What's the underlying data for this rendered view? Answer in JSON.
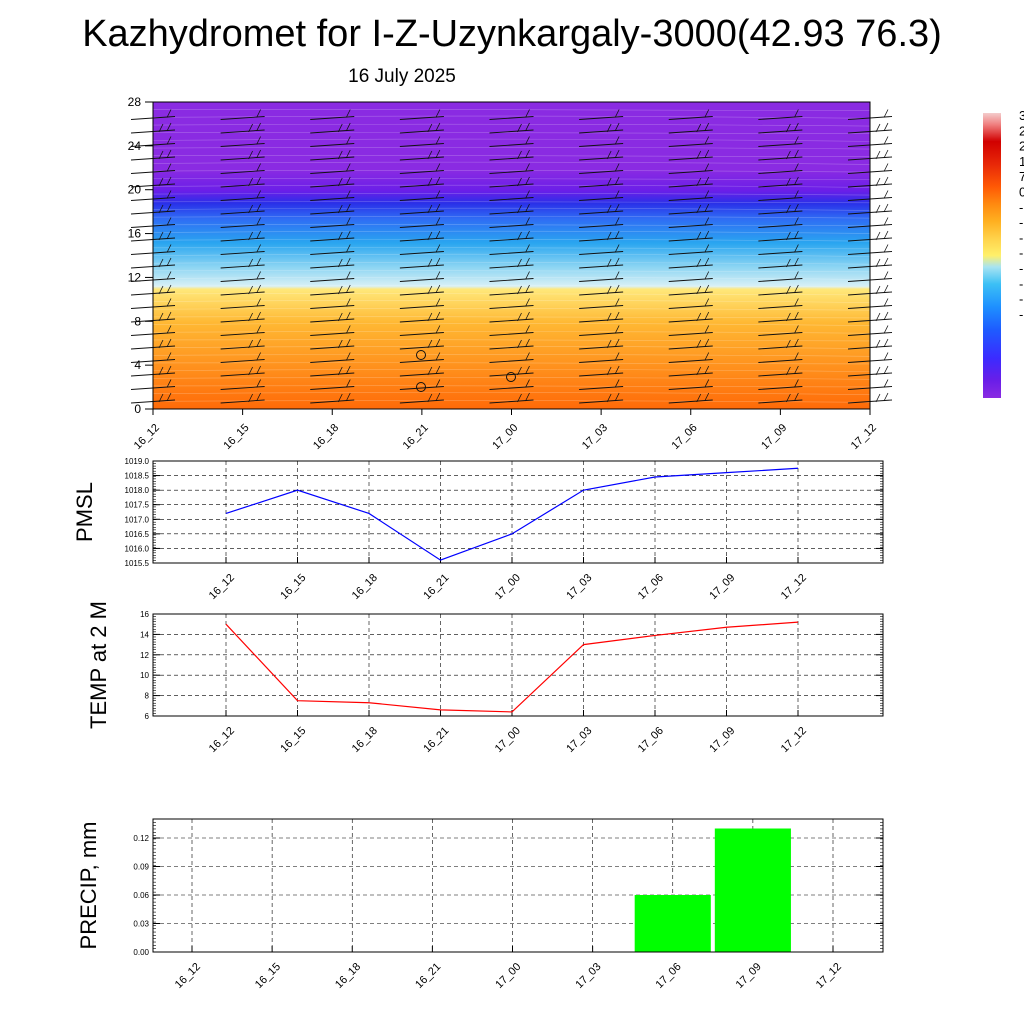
{
  "header": {
    "title": "Kazhydromet for I-Z-Uzynkargaly-3000(42.93 76.3)",
    "subtitle": "16 July 2025"
  },
  "colors": {
    "pmsl_line": "#0000ff",
    "temp_line": "#ff0000",
    "precip_bar": "#00ff00",
    "colorbar": [
      "#8a2be2",
      "#6a1ee8",
      "#3b2bff",
      "#1e5cff",
      "#1e90ff",
      "#3cc0f5",
      "#a8e4f2",
      "#fff06a",
      "#ffd24a",
      "#ffb020",
      "#ff8a10",
      "#ff5a05",
      "#e82808",
      "#d10000",
      "#f08080",
      "#f4cccc"
    ]
  },
  "chart_data": [
    {
      "type": "heatmap",
      "title": "",
      "x_tick_labels": [
        "16_12",
        "16_15",
        "16_18",
        "16_21",
        "17_00",
        "17_03",
        "17_06",
        "17_09",
        "17_12"
      ],
      "y_tick_labels": [
        "0",
        "4",
        "8",
        "12",
        "16",
        "20",
        "24",
        "28"
      ],
      "ylim": [
        0,
        28
      ],
      "colorbar_labels": [
        "3",
        "2",
        "2",
        "1",
        "7",
        "0",
        "-",
        "-",
        "-",
        "-",
        "-",
        "-",
        "-",
        "-"
      ],
      "description_layers": [
        "temperature shading",
        "wind barbs"
      ]
    },
    {
      "type": "line",
      "ylabel": "PMSL",
      "categories": [
        "16_12",
        "16_15",
        "16_18",
        "16_21",
        "17_00",
        "17_03",
        "17_06",
        "17_09",
        "17_12"
      ],
      "values": [
        1017.2,
        1018.0,
        1017.2,
        1015.6,
        1016.5,
        1018.0,
        1018.45,
        1018.6,
        1018.75
      ],
      "ylim": [
        1015.5,
        1019.0
      ],
      "y_tick_labels": [
        "1015.5",
        "1016.0",
        "1016.5",
        "1017.0",
        "1017.5",
        "1018.0",
        "1018.5",
        "1019.0"
      ],
      "grid": true
    },
    {
      "type": "line",
      "ylabel": "TEMP at 2 M",
      "categories": [
        "16_12",
        "16_15",
        "16_18",
        "16_21",
        "17_00",
        "17_03",
        "17_06",
        "17_09",
        "17_12"
      ],
      "values": [
        15.0,
        7.5,
        7.3,
        6.6,
        6.4,
        13.0,
        13.9,
        14.7,
        15.2
      ],
      "ylim": [
        6,
        16
      ],
      "y_tick_labels": [
        "6",
        "8",
        "10",
        "12",
        "14",
        "16"
      ],
      "grid": true
    },
    {
      "type": "bar",
      "ylabel": "PRECIP, mm",
      "categories": [
        "16_12",
        "16_15",
        "16_18",
        "16_21",
        "17_00",
        "17_03",
        "17_06",
        "17_09",
        "17_12"
      ],
      "values": [
        0,
        0,
        0,
        0,
        0,
        0,
        0.06,
        0.13,
        0
      ],
      "ylim": [
        0,
        0.14
      ],
      "y_tick_labels": [
        "0.00",
        "0.03",
        "0.06",
        "0.09",
        "0.12"
      ],
      "grid": true
    }
  ]
}
